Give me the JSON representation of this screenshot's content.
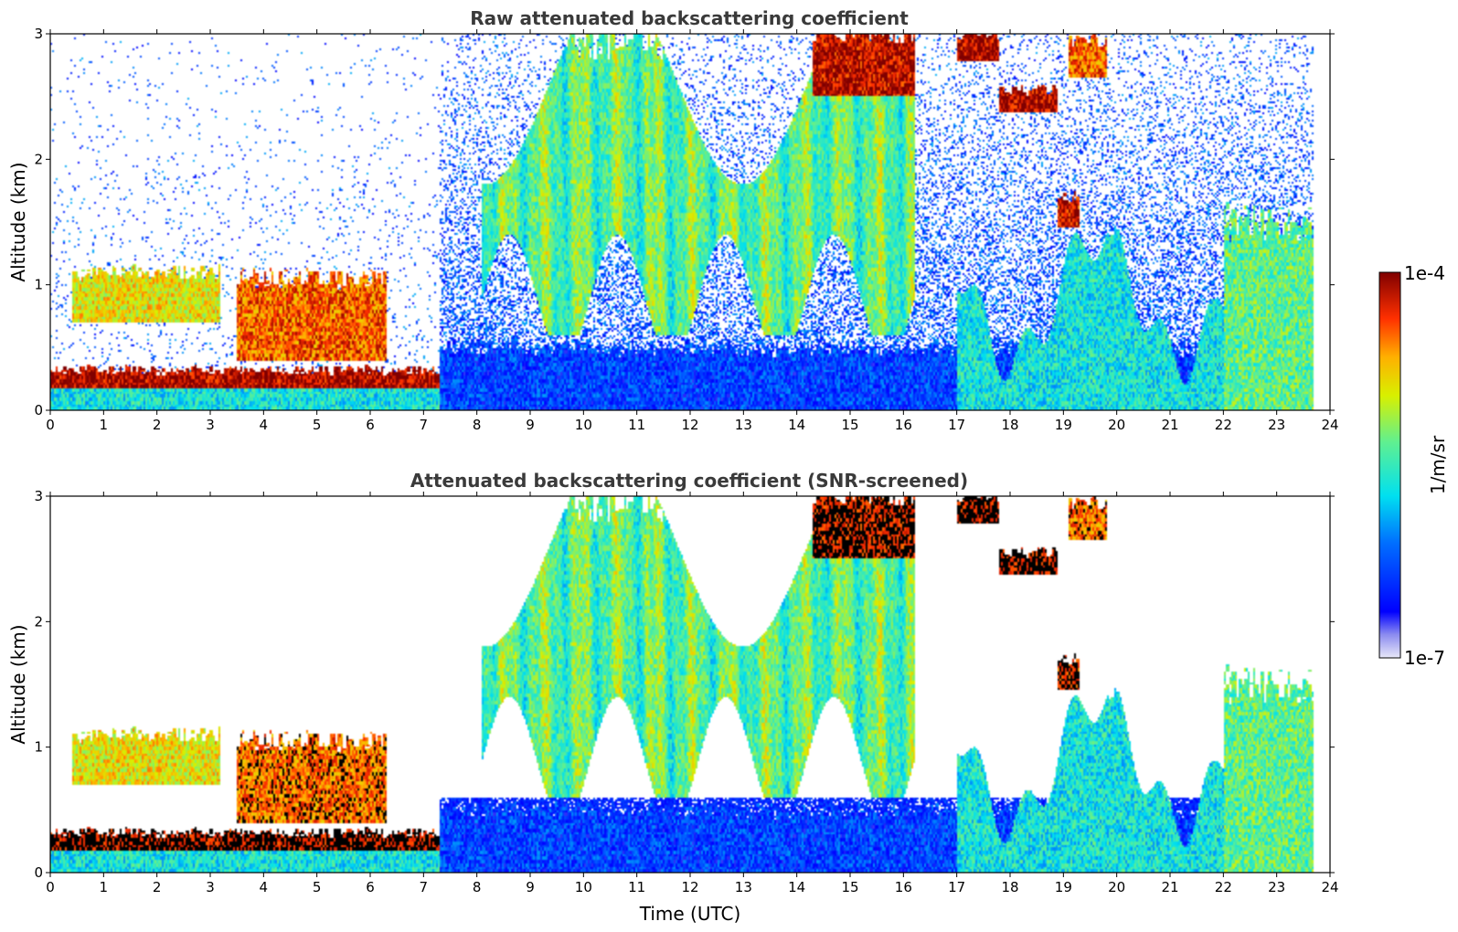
{
  "chart_data": [
    {
      "type": "heatmap",
      "title": "Raw attenuated backscattering coefficient",
      "xlabel": "",
      "ylabel": "Altitude (km)",
      "xlim": [
        0,
        24
      ],
      "ylim": [
        0,
        3
      ],
      "x_ticks": [
        "0",
        "1",
        "2",
        "3",
        "4",
        "5",
        "6",
        "7",
        "8",
        "9",
        "10",
        "11",
        "12",
        "13",
        "14",
        "15",
        "16",
        "17",
        "18",
        "19",
        "20",
        "21",
        "22",
        "23",
        "24"
      ],
      "y_ticks": [
        "0",
        "1",
        "2",
        "3"
      ],
      "screened": false,
      "features": [
        {
          "name": "surface aerosol layer",
          "t0": 0,
          "t1": 7.3,
          "z0": 0.0,
          "z1": 0.28,
          "level": 0.45
        },
        {
          "name": "strong layer ~0.25 km",
          "t0": 0,
          "t1": 7.3,
          "z0": 0.18,
          "z1": 0.32,
          "level": 0.97
        },
        {
          "name": "elevated cloud",
          "t0": 3.5,
          "t1": 6.3,
          "z0": 0.4,
          "z1": 1.05,
          "level": 0.85
        },
        {
          "name": "clouds ~1 km",
          "t0": 0.4,
          "t1": 3.2,
          "z0": 0.7,
          "z1": 1.1,
          "level": 0.7
        },
        {
          "name": "cirrus / mid clouds",
          "t0": 8.1,
          "t1": 16.2,
          "z0": 0.6,
          "z1": 3.0,
          "level": 0.6
        },
        {
          "name": "boundary layer",
          "t0": 7.3,
          "t1": 23.7,
          "z0": 0.0,
          "z1": 0.5,
          "level": 0.22
        },
        {
          "name": "cloud ~2.6-3 km",
          "t0": 14.3,
          "t1": 16.2,
          "z0": 2.5,
          "z1": 3.0,
          "level": 0.95
        },
        {
          "name": "cloud ~2.9 km",
          "t0": 17.0,
          "t1": 17.8,
          "z0": 2.78,
          "z1": 3.0,
          "level": 0.97
        },
        {
          "name": "cloud ~2.5 km",
          "t0": 17.8,
          "t1": 18.9,
          "z0": 2.38,
          "z1": 2.55,
          "level": 0.97
        },
        {
          "name": "cloud ~2.75 km",
          "t0": 19.1,
          "t1": 19.8,
          "z0": 2.65,
          "z1": 2.95,
          "level": 0.85
        },
        {
          "name": "cloud ~1.6 km",
          "t0": 18.9,
          "t1": 19.3,
          "z0": 1.45,
          "z1": 1.7,
          "level": 0.93
        },
        {
          "name": "afternoon convective layer",
          "t0": 17.0,
          "t1": 23.7,
          "z0": 0.0,
          "z1": 1.5,
          "level": 0.45
        },
        {
          "name": "late layer",
          "t0": 22.0,
          "t1": 23.7,
          "z0": 0.0,
          "z1": 1.5,
          "level": 0.55
        }
      ]
    },
    {
      "type": "heatmap",
      "title": "Attenuated backscattering coefficient (SNR-screened)",
      "xlabel": "Time (UTC)",
      "ylabel": "Altitude (km)",
      "xlim": [
        0,
        24
      ],
      "ylim": [
        0,
        3
      ],
      "x_ticks": [
        "0",
        "1",
        "2",
        "3",
        "4",
        "5",
        "6",
        "7",
        "8",
        "9",
        "10",
        "11",
        "12",
        "13",
        "14",
        "15",
        "16",
        "17",
        "18",
        "19",
        "20",
        "21",
        "22",
        "23",
        "24"
      ],
      "y_ticks": [
        "0",
        "1",
        "2",
        "3"
      ],
      "screened": true,
      "features": []
    }
  ],
  "colorbar": {
    "label": "1/m/sr",
    "max_label": "1e-4",
    "min_label": "1e-7",
    "colormap": "jet"
  }
}
